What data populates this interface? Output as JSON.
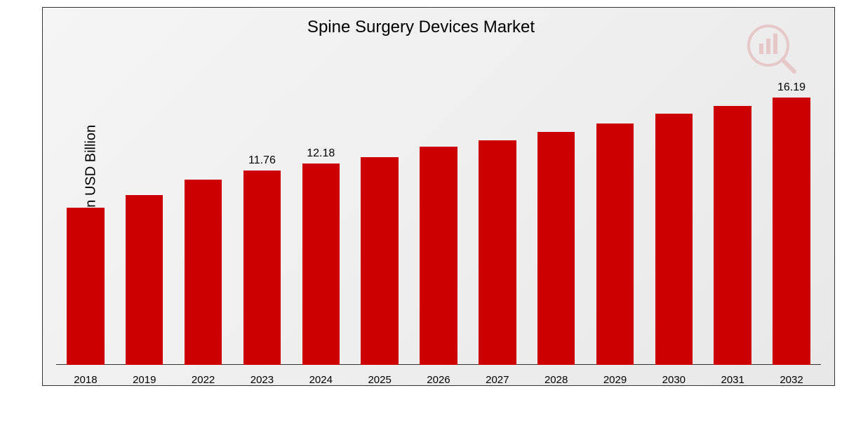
{
  "chart": {
    "type": "bar",
    "title": "Spine Surgery Devices Market",
    "title_fontsize": 24,
    "ylabel": "Market Value in USD Billion",
    "ylabel_fontsize": 20,
    "background_gradient_start": "#f5f5f5",
    "background_gradient_end": "#e8e8e8",
    "border_color": "#333333",
    "bar_color": "#cc0000",
    "text_color": "#000000",
    "categories": [
      "2018",
      "2019",
      "2022",
      "2023",
      "2024",
      "2025",
      "2026",
      "2027",
      "2028",
      "2029",
      "2030",
      "2031",
      "2032"
    ],
    "values": [
      9.5,
      10.3,
      11.2,
      11.76,
      12.18,
      12.6,
      13.2,
      13.6,
      14.1,
      14.6,
      15.2,
      15.7,
      16.19
    ],
    "ylim": [
      0,
      17
    ],
    "bar_width_pct": 70,
    "visible_labels": {
      "3": "11.76",
      "4": "12.18",
      "12": "16.19"
    },
    "x_label_fontsize": 15,
    "bar_label_fontsize": 16,
    "watermark_color": "#cc0000"
  }
}
